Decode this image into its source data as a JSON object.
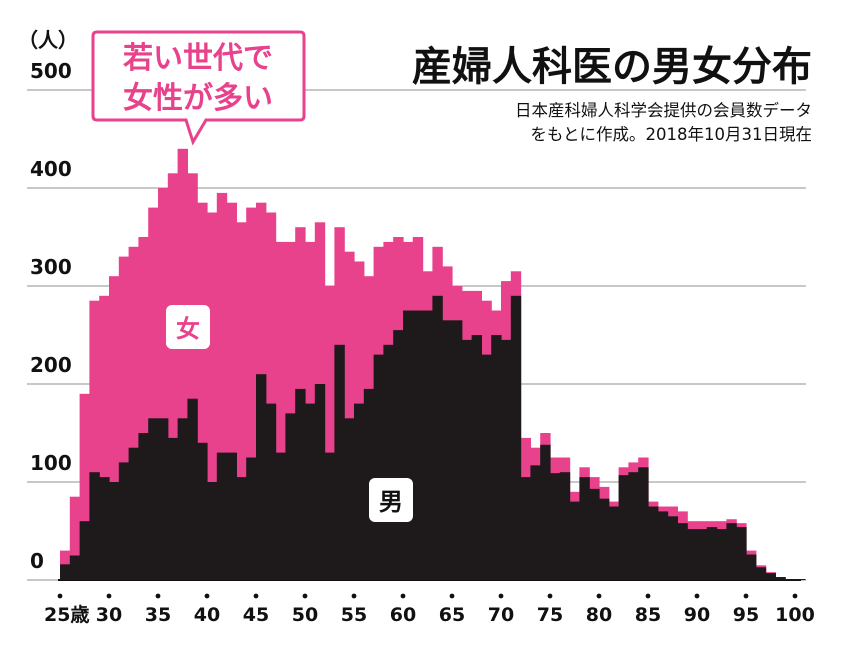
{
  "chart_data": {
    "type": "bar",
    "stacked": true,
    "title": "産婦人科医の男女分布",
    "subtitle": [
      "日本産科婦人科学会提供の会員数データ",
      "をもとに作成。2018年10月31日現在"
    ],
    "annotations": [
      "若い世代で",
      "女性が多い"
    ],
    "yunit": "（人）",
    "ylim": [
      0,
      500
    ],
    "yticks": [
      "0",
      "100",
      "200",
      "300",
      "400",
      "500"
    ],
    "xlim": [
      25,
      100
    ],
    "xticks": [
      "25歳",
      "30",
      "35",
      "40",
      "45",
      "50",
      "55",
      "60",
      "65",
      "70",
      "75",
      "80",
      "85",
      "90",
      "95",
      "100"
    ],
    "grid": true,
    "colors": {
      "female": "#e9428c",
      "male": "#1e1a1b",
      "grid": "#b5b5b5"
    },
    "x": [
      25,
      26,
      27,
      28,
      29,
      30,
      31,
      32,
      33,
      34,
      35,
      36,
      37,
      38,
      39,
      40,
      41,
      42,
      43,
      44,
      45,
      46,
      47,
      48,
      49,
      50,
      51,
      52,
      53,
      54,
      55,
      56,
      57,
      58,
      59,
      60,
      61,
      62,
      63,
      64,
      65,
      66,
      67,
      68,
      69,
      70,
      71,
      72,
      73,
      74,
      75,
      76,
      77,
      78,
      79,
      80,
      81,
      82,
      83,
      84,
      85,
      86,
      87,
      88,
      89,
      90,
      91,
      92,
      93,
      94,
      95,
      96,
      97,
      98,
      99,
      100
    ],
    "series": [
      {
        "name": "女",
        "values": [
          14,
          60,
          130,
          175,
          185,
          210,
          210,
          205,
          200,
          215,
          235,
          270,
          275,
          230,
          245,
          275,
          265,
          255,
          260,
          255,
          175,
          195,
          215,
          175,
          165,
          165,
          165,
          170,
          120,
          170,
          145,
          115,
          110,
          105,
          95,
          70,
          75,
          40,
          50,
          55,
          35,
          50,
          45,
          55,
          25,
          60,
          25,
          40,
          18,
          12,
          16,
          15,
          10,
          10,
          12,
          12,
          5,
          8,
          10,
          10,
          5,
          5,
          10,
          12,
          8,
          8,
          6,
          8,
          4,
          4,
          4,
          2,
          1,
          0,
          0,
          0
        ],
        "total": [
          30,
          85,
          190,
          285,
          290,
          310,
          330,
          340,
          350,
          380,
          400,
          415,
          440,
          415,
          385,
          375,
          395,
          385,
          365,
          380,
          385,
          375,
          345,
          345,
          360,
          345,
          365,
          300,
          360,
          335,
          325,
          310,
          340,
          345,
          350,
          345,
          350,
          315,
          340,
          320,
          300,
          295,
          295,
          285,
          275,
          305,
          315,
          145,
          135,
          150,
          125,
          125,
          90,
          115,
          105,
          95,
          80,
          115,
          120,
          125,
          80,
          75,
          75,
          70,
          60,
          60,
          60,
          60,
          62,
          58,
          30,
          15,
          8,
          3,
          1,
          1
        ],
        "note": "stacked on top of 男; values = 総数 − 男"
      },
      {
        "name": "男",
        "values": [
          16,
          25,
          60,
          110,
          105,
          100,
          120,
          135,
          150,
          165,
          165,
          145,
          165,
          185,
          140,
          100,
          130,
          130,
          105,
          125,
          210,
          180,
          130,
          170,
          195,
          180,
          200,
          130,
          240,
          165,
          180,
          195,
          230,
          240,
          255,
          275,
          275,
          275,
          290,
          265,
          265,
          245,
          250,
          230,
          250,
          245,
          290,
          105,
          117,
          138,
          109,
          110,
          80,
          105,
          93,
          83,
          75,
          107,
          110,
          115,
          75,
          70,
          65,
          58,
          52,
          52,
          54,
          52,
          58,
          54,
          26,
          13,
          7,
          3,
          1,
          1
        ]
      }
    ]
  }
}
